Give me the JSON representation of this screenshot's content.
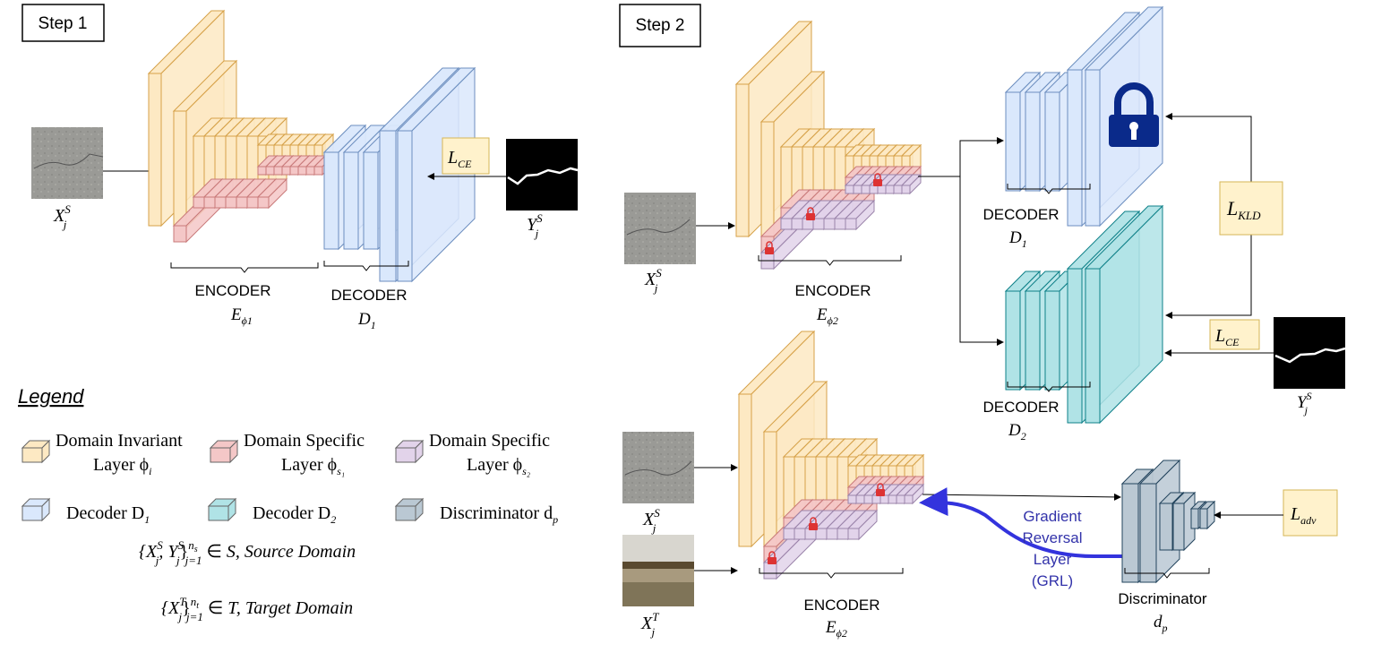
{
  "step1": {
    "title": "Step 1",
    "input_label": "X",
    "input_sup": "S",
    "input_sub": "j",
    "target_label": "Y",
    "target_sup": "S",
    "target_sub": "j",
    "loss": "L",
    "loss_sub": "CE",
    "encoder_label": "ENCODER",
    "encoder_symbol": "E",
    "encoder_sub": "ϕ1",
    "decoder_label": "DECODER",
    "decoder_symbol": "D",
    "decoder_sub": "1"
  },
  "step2": {
    "title": "Step 2",
    "input_label": "X",
    "input_sup": "S",
    "input_sub": "j",
    "encoder_label": "ENCODER",
    "encoder_symbol": "E",
    "encoder_sub": "ϕ2",
    "decoder1_label": "DECODER",
    "decoder1_symbol": "D",
    "decoder1_sub": "1",
    "decoder2_label": "DECODER",
    "decoder2_symbol": "D",
    "decoder2_sub": "2",
    "loss_kld": "L",
    "loss_kld_sub": "KLD",
    "loss_ce": "L",
    "loss_ce_sub": "CE",
    "target_label": "Y",
    "target_sup": "S",
    "target_sub": "j",
    "adv": {
      "source_label": "X",
      "source_sup": "S",
      "source_sub": "j",
      "target_domain_label": "X",
      "target_domain_sup": "T",
      "target_domain_sub": "j",
      "encoder_label": "ENCODER",
      "encoder_symbol": "E",
      "encoder_sub": "ϕ2",
      "grl_line1": "Gradient",
      "grl_line2": "Reversal",
      "grl_line3": "Layer",
      "grl_line4": "(GRL)",
      "discriminator_label": "Discriminator",
      "discriminator_symbol": "d",
      "discriminator_sub": "p",
      "loss": "L",
      "loss_sub": "adv"
    }
  },
  "legend": {
    "title": "Legend",
    "items": [
      {
        "line1": "Domain Invariant",
        "line2": "Layer ϕ",
        "sub": "i",
        "color": "#fde9c3"
      },
      {
        "line1": "Domain Specific",
        "line2": "Layer ϕ",
        "sub": "s₁",
        "color": "#f4c7c7"
      },
      {
        "line1": "Domain Specific",
        "line2": "Layer ϕ",
        "sub": "s₂",
        "color": "#e2d3ea"
      },
      {
        "line1": "Decoder D",
        "line2": "",
        "sub": "1",
        "color": "#dae8fc"
      },
      {
        "line1": "Decoder D",
        "line2": "",
        "sub": "2",
        "color": "#b0e3e6"
      },
      {
        "line1": "Discriminator d",
        "line2": "",
        "sub": "p",
        "color": "#bac8d3"
      }
    ],
    "source_domain": "{X^S_j, Y^S_j}^{n_s}_{j=1} ∈ S, Source Domain",
    "source_domain_text": "S, Source Domain",
    "target_domain_text": "T, Target Domain"
  },
  "colors": {
    "invariant": "#fde9c3",
    "invariant_stroke": "#d6a148",
    "specific1": "#f4c7c7",
    "specific1_stroke": "#c97a7a",
    "specific2": "#e2d3ea",
    "specific2_stroke": "#9b84aa",
    "decoder1": "#dae8fc",
    "decoder1_stroke": "#6c8ebf",
    "decoder2": "#b0e3e6",
    "decoder2_stroke": "#0e8088",
    "discriminator": "#bac8d3",
    "discriminator_stroke": "#23445d",
    "loss_box": "#fff2cc",
    "loss_box_stroke": "#d6b656",
    "grl_arrow": "#3333dd",
    "grl_text": "#3333aa",
    "lock": "#0a2a8a"
  }
}
